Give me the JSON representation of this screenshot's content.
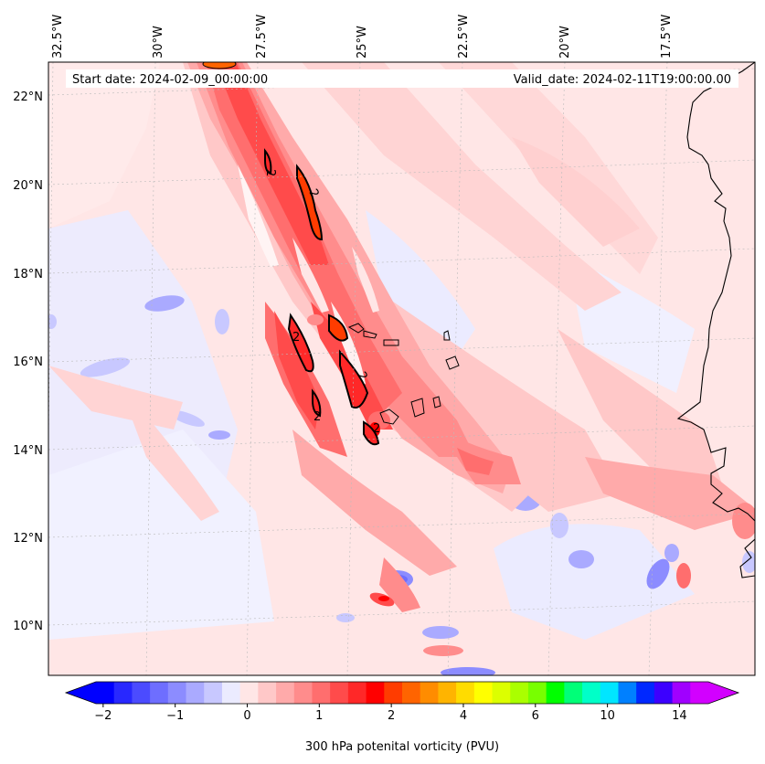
{
  "map": {
    "start_date": "Start date: 2024-02-09_00:00:00",
    "valid_date": "Valid_date: 2024-02-11T19:00:00.00",
    "lon_labels": [
      "32.5°W",
      "30°W",
      "27.5°W",
      "25°W",
      "22.5°W",
      "20°W",
      "17.5°W"
    ],
    "lat_labels": [
      "22°N",
      "20°N",
      "18°N",
      "16°N",
      "14°N",
      "12°N",
      "10°N"
    ],
    "contour_label": "2"
  },
  "colorbar": {
    "title": "300 hPa potenital vorticity (PVU)",
    "tick_labels": [
      "−2",
      "−1",
      "0",
      "1",
      "2",
      "4",
      "6",
      "10",
      "14"
    ],
    "colors": [
      "#0000ff",
      "#2828ff",
      "#4b4bff",
      "#6e6eff",
      "#8c8cff",
      "#aaaaff",
      "#c8c8ff",
      "#ebebff",
      "#ffe6e6",
      "#ffc8c8",
      "#ffaaaa",
      "#ff8c8c",
      "#ff6e6e",
      "#ff4b4b",
      "#ff2828",
      "#ff0000",
      "#ff3c00",
      "#ff6400",
      "#ff8c00",
      "#ffb400",
      "#ffdc00",
      "#ffff00",
      "#dcff00",
      "#aaff00",
      "#78ff00",
      "#00ff00",
      "#00ff78",
      "#00ffc8",
      "#00e6ff",
      "#0080ff",
      "#0028ff",
      "#3c00ff",
      "#a000ff",
      "#d200ff"
    ],
    "under_color": "#0000ff",
    "over_color": "#d200ff"
  },
  "colors": {
    "background_field": "#ffe6e6",
    "light_red": "#ffc8c8",
    "mid_red": "#ff8c8c",
    "strong_red": "#ff2828",
    "core_red": "#ff0000",
    "orange": "#ff6400",
    "light_blue": "#ebebff",
    "mid_blue": "#c8c8ff",
    "deep_blue": "#8c8cff",
    "coastline": "#000000"
  }
}
